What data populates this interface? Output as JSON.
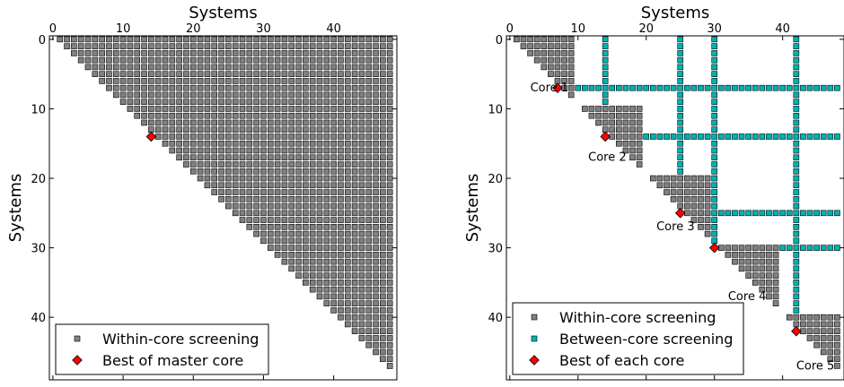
{
  "chart_data": [
    {
      "type": "scatter",
      "xlabel": "Systems",
      "ylabel": "Systems",
      "xlim": [
        -0.5,
        49
      ],
      "ylim": [
        49,
        -0.5
      ],
      "x_ticks": [
        0,
        10,
        20,
        30,
        40
      ],
      "y_ticks": [
        0,
        10,
        20,
        30,
        40
      ],
      "n": 49,
      "grid": false,
      "legend_position": "lower-left",
      "legend": [
        {
          "label": "Within-core screening",
          "marker": "square",
          "color": "#808080"
        },
        {
          "label": "Best of master core",
          "marker": "diamond",
          "color": "#ff0000"
        }
      ],
      "series": [
        {
          "name": "Within-core screening",
          "pattern": "upper-triangle",
          "blocks": [
            [
              0,
              48
            ]
          ],
          "color": "#808080"
        },
        {
          "name": "Best of master core",
          "points": [
            [
              14,
              14
            ]
          ],
          "color": "#ff0000"
        }
      ]
    },
    {
      "type": "scatter",
      "xlabel": "Systems",
      "ylabel": "Systems",
      "xlim": [
        -0.5,
        49
      ],
      "ylim": [
        49,
        -0.5
      ],
      "x_ticks": [
        0,
        10,
        20,
        30,
        40
      ],
      "y_ticks": [
        0,
        10,
        20,
        30,
        40
      ],
      "n": 49,
      "grid": false,
      "legend_position": "lower-left",
      "legend": [
        {
          "label": "Within-core screening",
          "marker": "square",
          "color": "#808080"
        },
        {
          "label": "Between-core screening",
          "marker": "square",
          "color": "#00b2b2"
        },
        {
          "label": "Best of each core",
          "marker": "diamond",
          "color": "#ff0000"
        }
      ],
      "series": [
        {
          "name": "Within-core screening",
          "pattern": "upper-triangle",
          "blocks": [
            [
              0,
              9
            ],
            [
              10,
              19
            ],
            [
              20,
              29
            ],
            [
              30,
              39
            ],
            [
              40,
              48
            ]
          ],
          "color": "#808080"
        },
        {
          "name": "Between-core screening",
          "best_indices": [
            7,
            14,
            25,
            30,
            42
          ],
          "color": "#00b2b2"
        },
        {
          "name": "Best of each core",
          "points": [
            [
              7,
              7
            ],
            [
              14,
              14
            ],
            [
              25,
              25
            ],
            [
              30,
              30
            ],
            [
              42,
              42
            ]
          ],
          "color": "#ff0000"
        }
      ],
      "annotations": [
        {
          "text": "Core 1",
          "x": 3,
          "y": 7.5
        },
        {
          "text": "Core 2",
          "x": 11.5,
          "y": 17.5
        },
        {
          "text": "Core 3",
          "x": 21.5,
          "y": 27.5
        },
        {
          "text": "Core 4",
          "x": 32,
          "y": 37.5
        },
        {
          "text": "Core 5",
          "x": 42,
          "y": 47.5
        }
      ]
    }
  ]
}
